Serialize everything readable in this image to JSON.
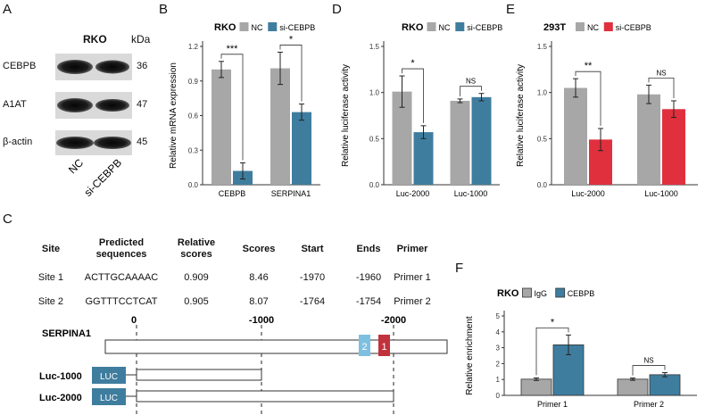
{
  "panels": {
    "a": {
      "letter": "A",
      "cell_line": "RKO",
      "kda_label": "kDa",
      "proteins": [
        {
          "name": "CEBPB",
          "kda": "36"
        },
        {
          "name": "A1AT",
          "kda": "47"
        },
        {
          "name": "β-actin",
          "kda": "45"
        }
      ],
      "lanes": [
        "NC",
        "si-CEBPB"
      ]
    },
    "b": {
      "letter": "B"
    },
    "c": {
      "letter": "C",
      "table": {
        "headers": [
          "Site",
          "Predicted sequences",
          "Relative scores",
          "Scores",
          "Start",
          "Ends",
          "Primer"
        ],
        "rows": [
          [
            "Site 1",
            "ACTTGCAAAAC",
            "0.909",
            "8.46",
            "-1970",
            "-1960",
            "Primer 1"
          ],
          [
            "Site 2",
            "GGTTTCCTCAT",
            "0.905",
            "8.07",
            "-1764",
            "-1754",
            "Primer 2"
          ]
        ]
      },
      "diagram": {
        "gene": "SERPINA1",
        "positions": [
          "0",
          "-1000",
          "-2000"
        ],
        "site_box_labels": [
          "2",
          "1"
        ],
        "constructs": [
          {
            "name": "Luc-1000",
            "tag": "LUC"
          },
          {
            "name": "Luc-2000",
            "tag": "LUC"
          }
        ]
      }
    },
    "d": {
      "letter": "D"
    },
    "e": {
      "letter": "E"
    },
    "f": {
      "letter": "F"
    }
  },
  "chart_data": [
    {
      "id": "B",
      "type": "bar",
      "title": "RKO",
      "categories": [
        "CEBPB",
        "SERPINA1"
      ],
      "series": [
        {
          "name": "NC",
          "color": "#a7a7a7",
          "values": [
            1.0,
            1.01
          ],
          "errors": [
            0.07,
            0.14
          ]
        },
        {
          "name": "si-CEBPB",
          "color": "#3f7d9e",
          "values": [
            0.12,
            0.63
          ],
          "errors": [
            0.07,
            0.07
          ]
        }
      ],
      "ylabel": "Relative mRNA expression",
      "ylim": [
        0,
        1.2
      ],
      "yticks": [
        "0.0",
        "0.3",
        "0.6",
        "0.9",
        "1.2"
      ],
      "significance": [
        "***",
        "*"
      ]
    },
    {
      "id": "D",
      "type": "bar",
      "title": "RKO",
      "categories": [
        "Luc-2000",
        "Luc-1000"
      ],
      "series": [
        {
          "name": "NC",
          "color": "#a7a7a7",
          "values": [
            1.01,
            0.91
          ],
          "errors": [
            0.17,
            0.02
          ]
        },
        {
          "name": "si-CEBPB",
          "color": "#3f7d9e",
          "values": [
            0.57,
            0.95
          ],
          "errors": [
            0.07,
            0.04
          ]
        }
      ],
      "ylabel": "Relative luciferase activity",
      "ylim": [
        0,
        1.5
      ],
      "yticks": [
        "0.0",
        "0.5",
        "1.0",
        "1.5"
      ],
      "significance": [
        "*",
        "NS"
      ]
    },
    {
      "id": "E",
      "type": "bar",
      "title": "293T",
      "categories": [
        "Luc-2000",
        "Luc-1000"
      ],
      "series": [
        {
          "name": "NC",
          "color": "#a7a7a7",
          "values": [
            1.05,
            0.98
          ],
          "errors": [
            0.1,
            0.1
          ]
        },
        {
          "name": "si-CEBPB",
          "color": "#e0303e",
          "values": [
            0.49,
            0.82
          ],
          "errors": [
            0.12,
            0.09
          ]
        }
      ],
      "ylabel": "Relative luciferase activity",
      "ylim": [
        0,
        1.5
      ],
      "yticks": [
        "0.0",
        "0.5",
        "1.0",
        "1.5"
      ],
      "significance": [
        "**",
        "NS"
      ]
    },
    {
      "id": "F",
      "type": "bar",
      "title": "RKO",
      "categories": [
        "Primer 1",
        "Primer 2"
      ],
      "series": [
        {
          "name": "IgG",
          "color": "#a7a7a7",
          "values": [
            1.02,
            1.02
          ],
          "errors": [
            0.08,
            0.07
          ]
        },
        {
          "name": "CEBPB",
          "color": "#3f7d9e",
          "values": [
            3.18,
            1.3
          ],
          "errors": [
            0.62,
            0.13
          ]
        }
      ],
      "ylabel": "Relative enrichment",
      "ylim": [
        0,
        5
      ],
      "yticks": [
        "0",
        "1",
        "2",
        "3",
        "4",
        "5"
      ],
      "significance": [
        "*",
        "NS"
      ]
    }
  ]
}
